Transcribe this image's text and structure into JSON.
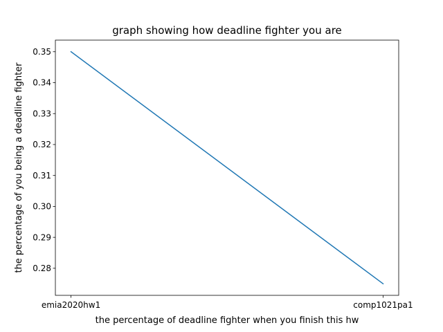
{
  "chart_data": {
    "type": "line",
    "title": "graph showing how deadline fighter you are",
    "xlabel": "the percentage of deadline fighter when you finish this hw",
    "ylabel": "the percentage of you being a deadline fighter",
    "categories": [
      "emia2020hw1",
      "comp1021pa1"
    ],
    "series": [
      {
        "values": [
          0.35,
          0.275
        ],
        "color": "#1f77b4"
      }
    ],
    "yticks": [
      0.28,
      0.29,
      0.3,
      0.31,
      0.32,
      0.33,
      0.34,
      0.35
    ],
    "ytick_labels": [
      "0.28",
      "0.29",
      "0.30",
      "0.31",
      "0.32",
      "0.33",
      "0.34",
      "0.35"
    ],
    "ylim": [
      0.27125,
      0.35375
    ],
    "grid": false,
    "legend": "none"
  }
}
